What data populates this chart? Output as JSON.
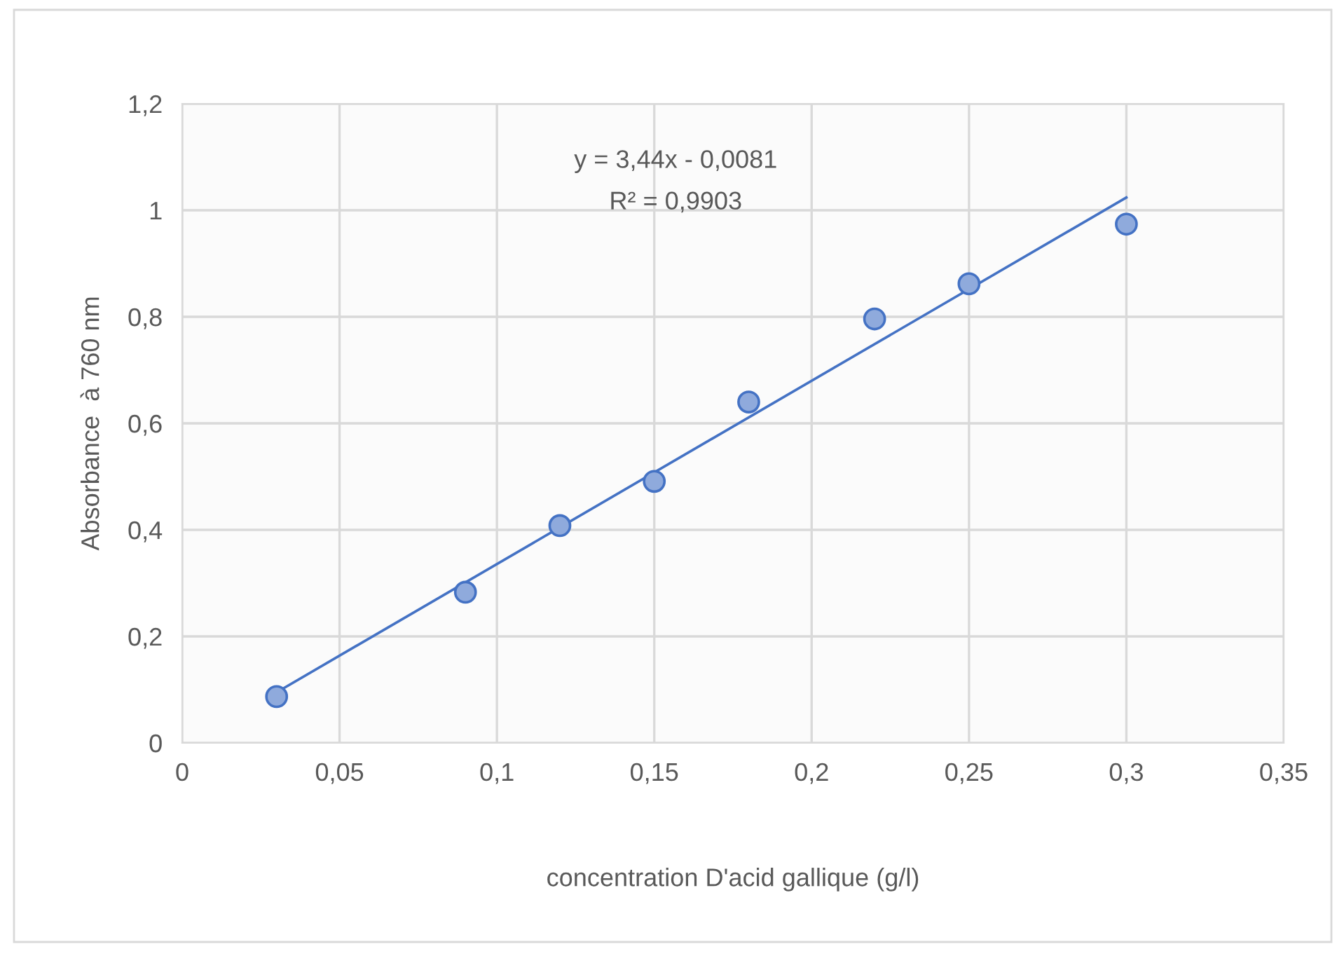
{
  "chart_data": {
    "type": "scatter",
    "xlabel": "concentration D'acid gallique (g/l)",
    "ylabel": "Absorbance  à 760 nm",
    "series": [
      {
        "color": "#4472c4",
        "marker": "circle",
        "x": [
          0.03,
          0.09,
          0.12,
          0.15,
          0.18,
          0.22,
          0.25,
          0.3
        ],
        "values": [
          0.087,
          0.283,
          0.408,
          0.491,
          0.64,
          0.796,
          0.862,
          0.974
        ]
      },
      {
        "type": "line",
        "marker": "none",
        "color": "#4472c4",
        "x": [
          0.03,
          0.3
        ],
        "values": [
          0.095,
          1.024
        ]
      }
    ],
    "annotations": [
      "y = 3,44x - 0,0081",
      "R² = 0,9903"
    ],
    "xlim": [
      0,
      0.35
    ],
    "ylim": [
      0,
      1.2
    ],
    "xticks": [
      0,
      {
        "value": 0.05,
        "label": "0,05"
      },
      {
        "value": 0.1,
        "label": "0,1"
      },
      {
        "value": 0.15,
        "label": "0,15"
      },
      {
        "value": 0.2,
        "label": "0,2"
      },
      {
        "value": 0.25,
        "label": "0,25"
      },
      {
        "value": 0.3,
        "label": "0,3"
      },
      {
        "value": 0.35,
        "label": "0,35"
      }
    ],
    "yticks": [
      0,
      {
        "value": 0.2,
        "label": "0,2"
      },
      {
        "value": 0.4,
        "label": "0,4"
      },
      {
        "value": 0.6,
        "label": "0,6"
      },
      {
        "value": 0.8,
        "label": "0,8"
      },
      1,
      {
        "value": 1.2,
        "label": "1,2"
      }
    ],
    "grid": true
  }
}
